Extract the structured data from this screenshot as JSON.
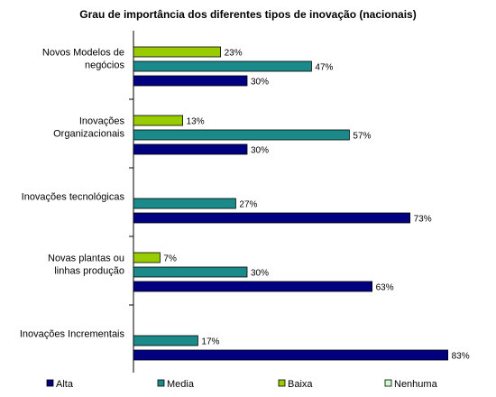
{
  "chart_data": {
    "type": "bar",
    "orientation": "horizontal",
    "title": "Grau de importância dos diferentes tipos de inovação (nacionais)",
    "categories": [
      [
        "Novos Modelos de",
        "negócios"
      ],
      [
        "Inovações",
        "Organizacionais"
      ],
      [
        "Inovações tecnológicas"
      ],
      [
        "Novas plantas ou",
        "linhas produção"
      ],
      [
        "Inovações Incrementais"
      ]
    ],
    "series": [
      {
        "name": "Alta",
        "color": "#000080",
        "values": [
          30,
          30,
          73,
          63,
          83
        ]
      },
      {
        "name": "Media",
        "color": "#1B8A8A",
        "values": [
          47,
          57,
          27,
          30,
          17
        ]
      },
      {
        "name": "Baixa",
        "color": "#99CC00",
        "values": [
          23,
          13,
          0,
          7,
          0
        ]
      },
      {
        "name": "Nenhuma",
        "color": "#CCFFCC",
        "values": [
          0,
          0,
          0,
          0,
          0
        ]
      }
    ],
    "value_suffix": "%",
    "xlim": [
      0,
      85
    ],
    "grid": false,
    "legend_position": "bottom"
  }
}
